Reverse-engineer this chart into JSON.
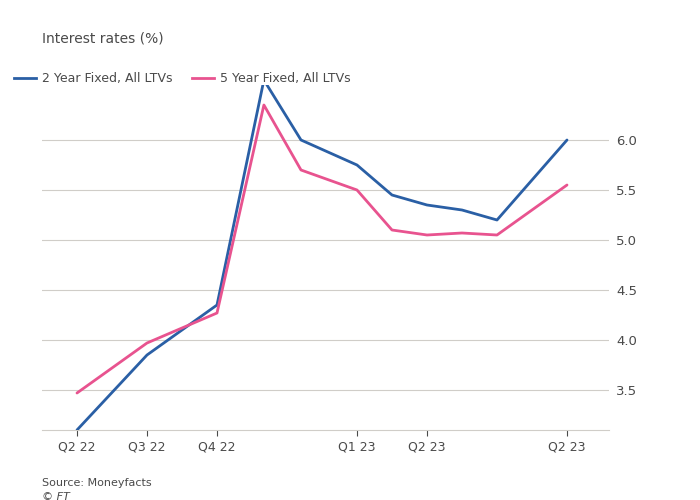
{
  "ylabel": "Interest rates (%)",
  "source": "Source: Moneyfacts",
  "credit": "© FT",
  "background_color": "#ffffff",
  "text_color": "#4a4a4a",
  "grid_color": "#d0cdc8",
  "line1_color": "#2a5fa5",
  "line2_color": "#e8538f",
  "line1_label": "2 Year Fixed, All LTVs",
  "line2_label": "5 Year Fixed, All LTVs",
  "ylim": [
    3.1,
    6.55
  ],
  "yticks": [
    3.5,
    4.0,
    4.5,
    5.0,
    5.5,
    6.0
  ],
  "x_positions": [
    0,
    1,
    1.5,
    2.0,
    2.67,
    3.2,
    4.0,
    4.5,
    5.0,
    5.5,
    6.0,
    7.0
  ],
  "series1": [
    3.1,
    3.85,
    4.1,
    4.35,
    6.6,
    6.0,
    5.75,
    5.45,
    5.35,
    5.3,
    5.2,
    6.0
  ],
  "series2": [
    3.47,
    3.97,
    4.12,
    4.27,
    6.35,
    5.7,
    5.5,
    5.1,
    5.05,
    5.07,
    5.05,
    5.55
  ],
  "x_tick_positions": [
    0,
    1,
    2,
    4.0,
    5.0,
    7.0
  ],
  "x_tick_labels": [
    "Q2 22",
    "Q3 22",
    "Q4 22",
    "Q1 23",
    "Q2 23",
    "Q2 23"
  ]
}
